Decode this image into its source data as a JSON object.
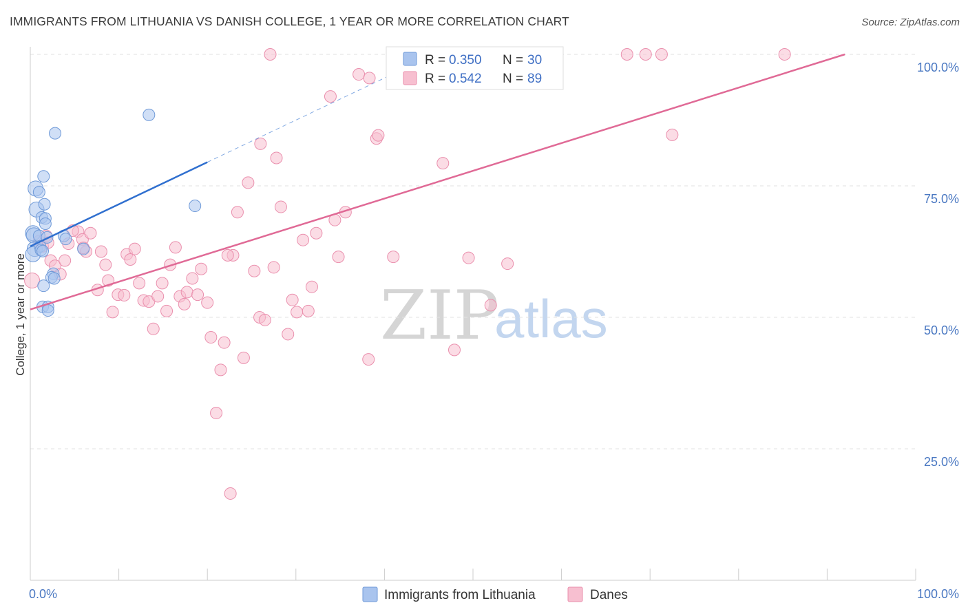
{
  "header": {
    "title": "IMMIGRANTS FROM LITHUANIA VS DANISH COLLEGE, 1 YEAR OR MORE CORRELATION CHART",
    "source": "Source: ZipAtlas.com"
  },
  "watermark": {
    "zip": "ZIP",
    "atlas": "atlas"
  },
  "legend": {
    "series1": {
      "r_label": "R = ",
      "r_value": "0.350",
      "n_label": "N = ",
      "n_value": "30"
    },
    "series2": {
      "r_label": "R = ",
      "r_value": "0.542",
      "n_label": "N = ",
      "n_value": "89"
    }
  },
  "bottom_legend": {
    "series1": "Immigrants from Lithuania",
    "series2": "Danes"
  },
  "colors": {
    "series1_fill": "#a9c4ee",
    "series1_stroke": "#6f9ad8",
    "series1_line": "#2f6fcf",
    "series2_fill": "#f7bfd0",
    "series2_stroke": "#ea8fad",
    "series2_line": "#e06a96",
    "grid": "#e2e2e2",
    "axis_text": "#4a78c2"
  },
  "chart_data": {
    "type": "scatter",
    "title": "IMMIGRANTS FROM LITHUANIA VS DANISH COLLEGE, 1 YEAR OR MORE CORRELATION CHART",
    "xlabel": "",
    "ylabel": "College, 1 year or more",
    "xlim": [
      0,
      100
    ],
    "ylim": [
      0,
      100
    ],
    "x_tick_labels": [
      "0.0%",
      "100.0%"
    ],
    "y_tick_labels": [
      "25.0%",
      "50.0%",
      "75.0%",
      "100.0%"
    ],
    "y_ticks": [
      25,
      50,
      75,
      100
    ],
    "grid": true,
    "series": [
      {
        "name": "Immigrants from Lithuania",
        "R": 0.35,
        "N": 30,
        "trend": {
          "x": [
            0,
            20
          ],
          "y": [
            63.5,
            79.5
          ],
          "dashed_extension": {
            "x": [
              20,
              45
            ],
            "y": [
              79.5,
              99.5
            ]
          }
        },
        "points": [
          [
            0.3,
            66.0
          ],
          [
            0.4,
            65.6
          ],
          [
            0.5,
            63.0
          ],
          [
            0.3,
            62.0
          ],
          [
            0.6,
            74.5
          ],
          [
            0.7,
            70.5
          ],
          [
            1.0,
            73.8
          ],
          [
            1.5,
            76.8
          ],
          [
            1.6,
            71.5
          ],
          [
            1.3,
            69.0
          ],
          [
            1.7,
            68.8
          ],
          [
            1.7,
            67.8
          ],
          [
            1.0,
            65.5
          ],
          [
            1.1,
            63.5
          ],
          [
            1.2,
            62.8
          ],
          [
            1.4,
            62.6
          ],
          [
            1.9,
            65.2
          ],
          [
            2.6,
            58.3
          ],
          [
            2.4,
            57.6
          ],
          [
            2.7,
            57.4
          ],
          [
            1.5,
            56.0
          ],
          [
            1.4,
            52.0
          ],
          [
            2.0,
            52.0
          ],
          [
            2.0,
            51.3
          ],
          [
            2.8,
            85.0
          ],
          [
            3.8,
            65.5
          ],
          [
            4.0,
            64.9
          ],
          [
            6.0,
            63.0
          ],
          [
            13.4,
            88.5
          ],
          [
            18.6,
            71.2
          ]
        ]
      },
      {
        "name": "Danes",
        "R": 0.542,
        "N": 89,
        "trend": {
          "x": [
            0,
            92
          ],
          "y": [
            51.5,
            100
          ]
        },
        "points": [
          [
            0.2,
            57.0
          ],
          [
            1.0,
            64.5
          ],
          [
            1.4,
            63.5
          ],
          [
            1.8,
            65.5
          ],
          [
            2.0,
            64.2
          ],
          [
            2.3,
            60.8
          ],
          [
            2.8,
            59.8
          ],
          [
            3.4,
            58.2
          ],
          [
            3.9,
            60.8
          ],
          [
            4.3,
            64.0
          ],
          [
            5.4,
            66.3
          ],
          [
            5.9,
            64.8
          ],
          [
            6.3,
            62.5
          ],
          [
            6.8,
            66.0
          ],
          [
            7.6,
            55.2
          ],
          [
            8.0,
            62.5
          ],
          [
            8.5,
            60.0
          ],
          [
            8.8,
            57.0
          ],
          [
            9.3,
            51.0
          ],
          [
            9.9,
            54.3
          ],
          [
            10.6,
            54.2
          ],
          [
            10.9,
            62.0
          ],
          [
            11.3,
            61.0
          ],
          [
            11.8,
            63.0
          ],
          [
            12.3,
            56.5
          ],
          [
            12.8,
            53.2
          ],
          [
            13.4,
            53.0
          ],
          [
            13.9,
            47.8
          ],
          [
            14.4,
            54.0
          ],
          [
            14.9,
            56.5
          ],
          [
            15.4,
            51.2
          ],
          [
            15.8,
            60.0
          ],
          [
            16.4,
            63.3
          ],
          [
            16.9,
            54.0
          ],
          [
            17.4,
            52.5
          ],
          [
            17.7,
            54.8
          ],
          [
            18.3,
            57.4
          ],
          [
            18.9,
            54.3
          ],
          [
            19.3,
            59.2
          ],
          [
            20.0,
            52.8
          ],
          [
            20.4,
            46.2
          ],
          [
            21.0,
            31.8
          ],
          [
            21.5,
            40.0
          ],
          [
            21.9,
            45.2
          ],
          [
            22.6,
            16.5
          ],
          [
            22.9,
            61.8
          ],
          [
            23.4,
            70.0
          ],
          [
            24.1,
            42.3
          ],
          [
            24.6,
            75.6
          ],
          [
            25.3,
            58.8
          ],
          [
            25.9,
            50.0
          ],
          [
            26.0,
            83.0
          ],
          [
            26.5,
            49.5
          ],
          [
            27.1,
            100.0
          ],
          [
            27.5,
            59.5
          ],
          [
            27.8,
            80.3
          ],
          [
            28.3,
            71.0
          ],
          [
            29.1,
            46.8
          ],
          [
            29.6,
            53.3
          ],
          [
            30.1,
            51.0
          ],
          [
            30.8,
            64.7
          ],
          [
            31.4,
            51.2
          ],
          [
            31.8,
            55.8
          ],
          [
            32.3,
            66.0
          ],
          [
            33.9,
            92.0
          ],
          [
            34.4,
            68.5
          ],
          [
            34.8,
            61.5
          ],
          [
            35.6,
            70.0
          ],
          [
            37.1,
            96.2
          ],
          [
            38.2,
            42.0
          ],
          [
            38.3,
            95.5
          ],
          [
            39.1,
            84.0
          ],
          [
            39.3,
            84.6
          ],
          [
            41.0,
            61.5
          ],
          [
            46.1,
            100.0
          ],
          [
            46.6,
            79.3
          ],
          [
            47.9,
            43.8
          ],
          [
            49.5,
            61.3
          ],
          [
            52.0,
            52.3
          ],
          [
            53.9,
            60.2
          ],
          [
            56.5,
            100.0
          ],
          [
            67.4,
            100.0
          ],
          [
            69.5,
            100.0
          ],
          [
            71.3,
            100.0
          ],
          [
            72.5,
            84.7
          ],
          [
            85.2,
            100.0
          ],
          [
            4.8,
            66.5
          ],
          [
            6.0,
            63.2
          ],
          [
            22.3,
            61.8
          ]
        ]
      }
    ]
  }
}
